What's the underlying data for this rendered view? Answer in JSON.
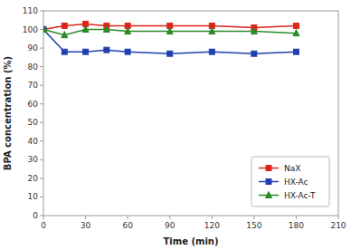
{
  "chart_data": {
    "type": "line",
    "xlabel": "Time (min)",
    "ylabel": "BPA concentration (%)",
    "x": [
      0,
      15,
      30,
      45,
      60,
      90,
      120,
      150,
      180
    ],
    "series": [
      {
        "name": "NaX",
        "color": "#d9261c",
        "marker": "square",
        "values": [
          100,
          102,
          103,
          102,
          102,
          102,
          102,
          101,
          102
        ]
      },
      {
        "name": "HX-Ac",
        "color": "#2040b0",
        "marker": "square",
        "values": [
          100,
          88,
          88,
          89,
          88,
          87,
          88,
          87,
          88
        ]
      },
      {
        "name": "HX-Ac-T",
        "color": "#2a8a2a",
        "marker": "triangle",
        "values": [
          100,
          97,
          100,
          100,
          99,
          99,
          99,
          99,
          98
        ]
      }
    ],
    "xlim": [
      0,
      210
    ],
    "ylim": [
      0,
      110
    ],
    "xticks": [
      0,
      30,
      60,
      90,
      120,
      150,
      180,
      210
    ],
    "yticks": [
      0,
      10,
      20,
      30,
      40,
      50,
      60,
      70,
      80,
      90,
      100,
      110
    ],
    "legend": "lower right",
    "grid": false
  }
}
